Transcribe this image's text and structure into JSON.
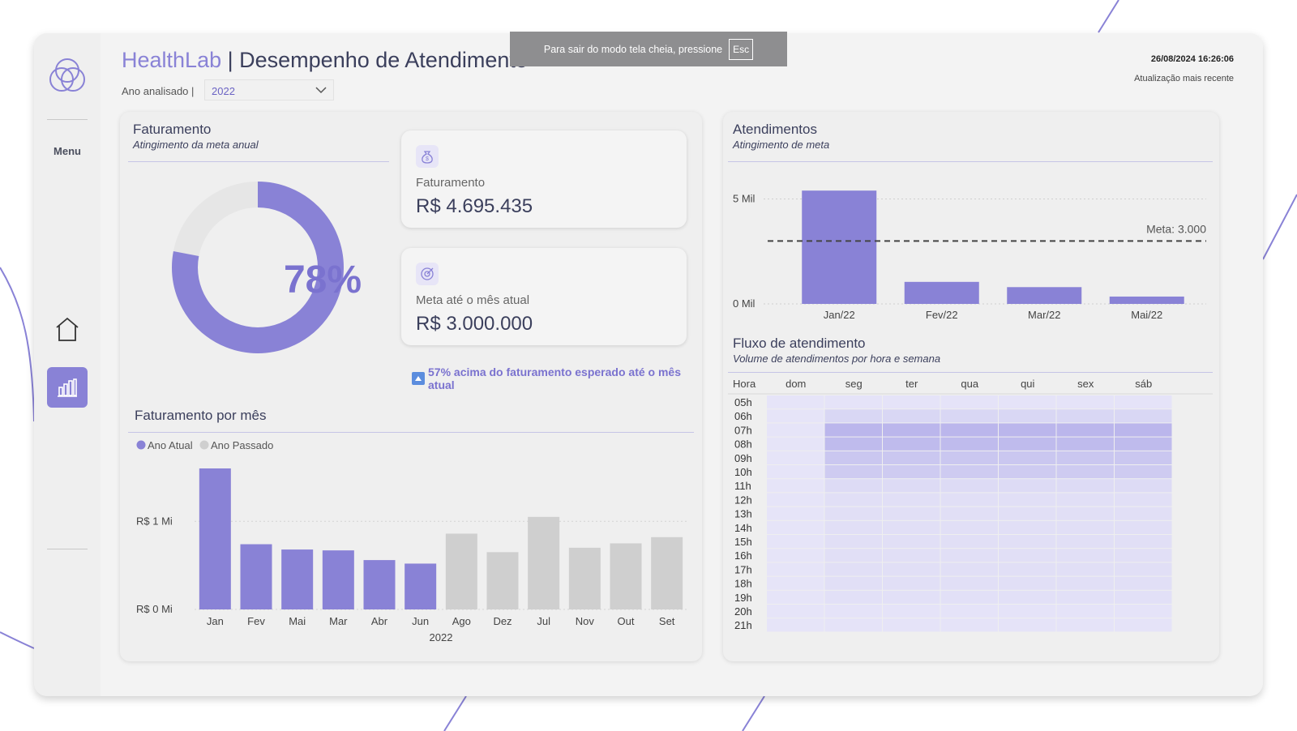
{
  "header": {
    "brand": "HealthLab",
    "separator": " | ",
    "title": "Desempenho de Atendimento",
    "year_label": "Ano analisado |",
    "year_value": "2022",
    "timestamp": "26/08/2024 16:26:06",
    "updated_label": "Atualização mais recente"
  },
  "fullscreen_notice": {
    "text": "Para sair do modo tela cheia, pressione",
    "key": "Esc"
  },
  "sidebar": {
    "menu_label": "Menu"
  },
  "faturamento": {
    "title": "Faturamento",
    "subtitle": "Atingimento da meta anual",
    "percent": "78%",
    "percent_value": 0.78,
    "card_revenue_label": "Faturamento",
    "card_revenue_value": "R$ 4.695.435",
    "card_goal_label": "Meta até o mês atual",
    "card_goal_value": "R$ 3.000.000",
    "note": "57% acima do faturamento esperado até o mês atual"
  },
  "colors": {
    "accent": "#8982d6",
    "muted": "#cfcfcf",
    "panel": "#efefef"
  },
  "chart_data": [
    {
      "type": "bar",
      "title": "Atendimentos",
      "subtitle": "Atingimento de meta",
      "categories": [
        "Jan/22",
        "Fev/22",
        "Mar/22",
        "Mai/22"
      ],
      "values": [
        5400,
        1050,
        800,
        350
      ],
      "ylim": [
        0,
        5600
      ],
      "yticks": [
        "5 Mil",
        "0 Mil"
      ],
      "reference_line": {
        "value": 3000,
        "label": "Meta: 3.000"
      }
    },
    {
      "type": "bar",
      "title": "Faturamento por mês",
      "legend": [
        "Ano Atual",
        "Ano Passado"
      ],
      "categories": [
        "Jan",
        "Fev",
        "Mai",
        "Mar",
        "Abr",
        "Jun",
        "Ago",
        "Dez",
        "Jul",
        "Nov",
        "Out",
        "Set"
      ],
      "values": [
        1.6,
        0.74,
        0.68,
        0.67,
        0.56,
        0.52,
        0.86,
        0.65,
        1.05,
        0.7,
        0.75,
        0.82
      ],
      "series_index": [
        0,
        0,
        0,
        0,
        0,
        0,
        1,
        1,
        1,
        1,
        1,
        1
      ],
      "yticks": [
        "R$ 1 Mi",
        "R$ 0 Mi"
      ],
      "xlabel": "2022",
      "ylim": [
        0,
        1.6
      ]
    },
    {
      "type": "heatmap",
      "title": "Fluxo de atendimento",
      "subtitle": "Volume de atendimentos por hora e semana",
      "row_header": "Hora",
      "columns": [
        "dom",
        "seg",
        "ter",
        "qua",
        "qui",
        "sex",
        "sáb"
      ],
      "rows": [
        "05h",
        "06h",
        "07h",
        "08h",
        "09h",
        "10h",
        "11h",
        "12h",
        "13h",
        "14h",
        "15h",
        "16h",
        "17h",
        "18h",
        "19h",
        "20h",
        "21h"
      ],
      "intensity_by_hour": [
        0.05,
        0.2,
        0.6,
        0.55,
        0.4,
        0.35,
        0.15,
        0.1,
        0.1,
        0.1,
        0.1,
        0.1,
        0.1,
        0.1,
        0.08,
        0.05,
        0.05
      ],
      "sunday_intensity": 0.03
    }
  ]
}
